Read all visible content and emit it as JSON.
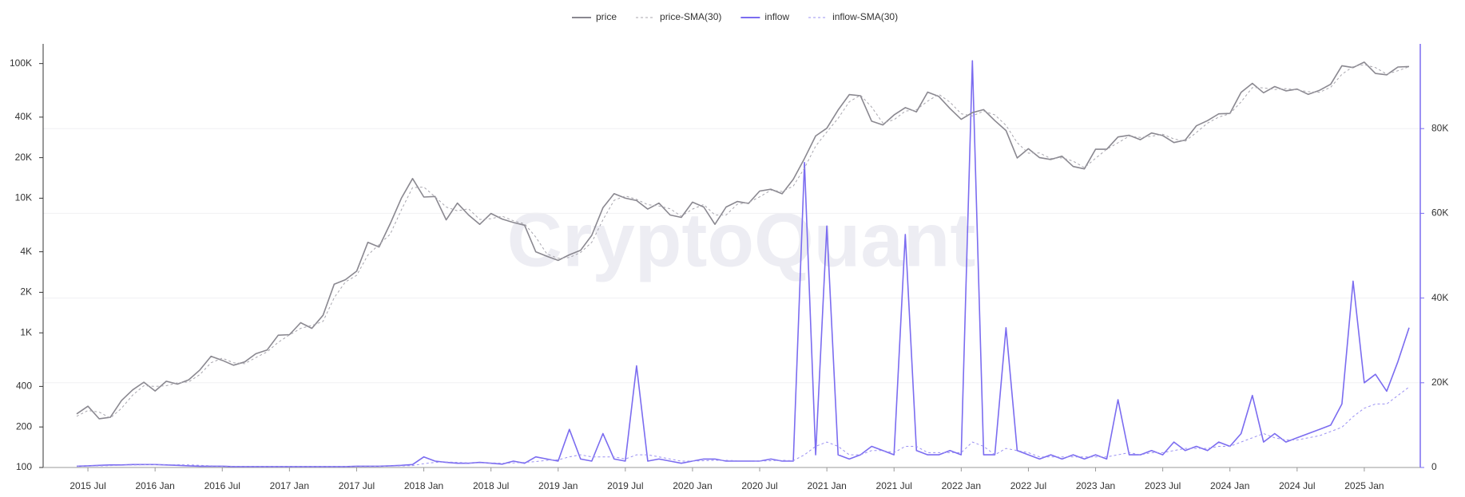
{
  "chart_data": {
    "type": "line",
    "watermark": "CryptoQuant",
    "ylog": true,
    "grid": true,
    "legend": "top",
    "x": [
      "2015-06",
      "2015-07",
      "2015-08",
      "2015-09",
      "2015-10",
      "2015-11",
      "2015-12",
      "2016-01",
      "2016-02",
      "2016-03",
      "2016-04",
      "2016-05",
      "2016-06",
      "2016-07",
      "2016-08",
      "2016-09",
      "2016-10",
      "2016-11",
      "2016-12",
      "2017-01",
      "2017-02",
      "2017-03",
      "2017-04",
      "2017-05",
      "2017-06",
      "2017-07",
      "2017-08",
      "2017-09",
      "2017-10",
      "2017-11",
      "2017-12",
      "2018-01",
      "2018-02",
      "2018-03",
      "2018-04",
      "2018-05",
      "2018-06",
      "2018-07",
      "2018-08",
      "2018-09",
      "2018-10",
      "2018-11",
      "2018-12",
      "2019-01",
      "2019-02",
      "2019-03",
      "2019-04",
      "2019-05",
      "2019-06",
      "2019-07",
      "2019-08",
      "2019-09",
      "2019-10",
      "2019-11",
      "2019-12",
      "2020-01",
      "2020-02",
      "2020-03",
      "2020-04",
      "2020-05",
      "2020-06",
      "2020-07",
      "2020-08",
      "2020-09",
      "2020-10",
      "2020-11",
      "2020-12",
      "2021-01",
      "2021-02",
      "2021-03",
      "2021-04",
      "2021-05",
      "2021-06",
      "2021-07",
      "2021-08",
      "2021-09",
      "2021-10",
      "2021-11",
      "2021-12",
      "2022-01",
      "2022-02",
      "2022-03",
      "2022-04",
      "2022-05",
      "2022-06",
      "2022-07",
      "2022-08",
      "2022-09",
      "2022-10",
      "2022-11",
      "2022-12",
      "2023-01",
      "2023-02",
      "2023-03",
      "2023-04",
      "2023-05",
      "2023-06",
      "2023-07",
      "2023-08",
      "2023-09",
      "2023-10",
      "2023-11",
      "2023-12",
      "2024-01",
      "2024-02",
      "2024-03",
      "2024-04",
      "2024-05",
      "2024-06",
      "2024-07",
      "2024-08",
      "2024-09",
      "2024-10",
      "2024-11",
      "2024-12",
      "2025-01",
      "2025-02",
      "2025-03",
      "2025-04",
      "2025-05"
    ],
    "xlim": [
      "2015-03",
      "2025-06"
    ],
    "xticks": [
      {
        "value": "2015-07",
        "label": "2015 Jul"
      },
      {
        "value": "2016-01",
        "label": "2016 Jan"
      },
      {
        "value": "2016-07",
        "label": "2016 Jul"
      },
      {
        "value": "2017-01",
        "label": "2017 Jan"
      },
      {
        "value": "2017-07",
        "label": "2017 Jul"
      },
      {
        "value": "2018-01",
        "label": "2018 Jan"
      },
      {
        "value": "2018-07",
        "label": "2018 Jul"
      },
      {
        "value": "2019-01",
        "label": "2019 Jan"
      },
      {
        "value": "2019-07",
        "label": "2019 Jul"
      },
      {
        "value": "2020-01",
        "label": "2020 Jan"
      },
      {
        "value": "2020-07",
        "label": "2020 Jul"
      },
      {
        "value": "2021-01",
        "label": "2021 Jan"
      },
      {
        "value": "2021-07",
        "label": "2021 Jul"
      },
      {
        "value": "2022-01",
        "label": "2022 Jan"
      },
      {
        "value": "2022-07",
        "label": "2022 Jul"
      },
      {
        "value": "2023-01",
        "label": "2023 Jan"
      },
      {
        "value": "2023-07",
        "label": "2023 Jul"
      },
      {
        "value": "2024-01",
        "label": "2024 Jan"
      },
      {
        "value": "2024-07",
        "label": "2024 Jul"
      },
      {
        "value": "2025-01",
        "label": "2025 Jan"
      }
    ],
    "ylim": [
      100,
      140000
    ],
    "yticks": [
      100,
      200,
      400,
      {
        "value": 1000,
        "label": "1K"
      },
      {
        "value": 2000,
        "label": "2K"
      },
      {
        "value": 4000,
        "label": "4K"
      },
      {
        "value": 10000,
        "label": "10K"
      },
      {
        "value": 20000,
        "label": "20K"
      },
      {
        "value": 40000,
        "label": "40K"
      },
      {
        "value": 100000,
        "label": "100K"
      }
    ],
    "y2lim": [
      0,
      100000
    ],
    "y2ticks": [
      0,
      {
        "value": 20000,
        "label": "20K"
      },
      {
        "value": 40000,
        "label": "40K"
      },
      {
        "value": 60000,
        "label": "60K"
      },
      {
        "value": 80000,
        "label": "80K"
      }
    ],
    "series": [
      {
        "name": "price",
        "color": "#8a8890",
        "style": "solid",
        "axis": "y",
        "values": [
          250,
          285,
          230,
          236,
          314,
          377,
          430,
          370,
          437,
          416,
          448,
          530,
          670,
          625,
          575,
          608,
          700,
          745,
          960,
          970,
          1190,
          1080,
          1350,
          2300,
          2480,
          2870,
          4700,
          4340,
          6470,
          10000,
          14000,
          10200,
          10300,
          6900,
          9200,
          7500,
          6400,
          7700,
          7000,
          6600,
          6300,
          4000,
          3700,
          3450,
          3800,
          4100,
          5300,
          8500,
          10800,
          10000,
          9600,
          8300,
          9200,
          7500,
          7200,
          9350,
          8600,
          6400,
          8600,
          9450,
          9140,
          11300,
          11650,
          10780,
          13800,
          19700,
          29000,
          33100,
          45200,
          58800,
          57700,
          37300,
          35000,
          41500,
          47100,
          43800,
          61300,
          57000,
          46300,
          38500,
          43200,
          45500,
          37700,
          31800,
          19900,
          23300,
          20000,
          19400,
          20500,
          17200,
          16500,
          23100,
          23100,
          28500,
          29300,
          27200,
          30500,
          29200,
          25900,
          27000,
          34500,
          37700,
          42300,
          42600,
          61200,
          71300,
          60700,
          67500,
          62700,
          64600,
          59000,
          63300,
          70200,
          96400,
          93400,
          102400,
          84400,
          82500,
          94200,
          95000
        ]
      },
      {
        "name": "price-SMA(30)",
        "color": "#a8a6ae",
        "style": "dashed",
        "axis": "y",
        "values": [
          240,
          265,
          258,
          233,
          275,
          345,
          405,
          400,
          405,
          425,
          432,
          490,
          600,
          648,
          600,
          590,
          655,
          722,
          850,
          965,
          1080,
          1135,
          1215,
          1825,
          2390,
          2675,
          3785,
          4520,
          5400,
          8200,
          12000,
          12100,
          10250,
          8600,
          8050,
          8350,
          6950,
          7050,
          7350,
          6800,
          6450,
          5150,
          3850,
          3575,
          3625,
          3950,
          4700,
          6900,
          9650,
          10400,
          9800,
          8950,
          8750,
          8350,
          7350,
          8300,
          8975,
          7500,
          7500,
          9025,
          9300,
          10220,
          11475,
          11215,
          12290,
          16750,
          24350,
          31050,
          39150,
          52000,
          58250,
          47500,
          36150,
          38250,
          44300,
          45450,
          52550,
          59150,
          51650,
          42400,
          40850,
          44350,
          41600,
          34750,
          25850,
          21600,
          21650,
          19700,
          19950,
          18850,
          16850,
          19800,
          23100,
          25800,
          28900,
          28250,
          28850,
          29850,
          27550,
          26450,
          30750,
          36100,
          40000,
          42450,
          51900,
          66250,
          66000,
          64100,
          65100,
          63650,
          61800,
          61150,
          66750,
          83300,
          94900,
          97900,
          93400,
          83450,
          88350,
          94600
        ]
      },
      {
        "name": "inflow",
        "color": "#7b6cf0",
        "style": "solid",
        "axis": "y2",
        "values": [
          300,
          400,
          500,
          600,
          600,
          700,
          700,
          700,
          600,
          500,
          400,
          300,
          300,
          300,
          200,
          200,
          200,
          200,
          200,
          200,
          200,
          200,
          200,
          200,
          200,
          300,
          300,
          300,
          400,
          500,
          700,
          2500,
          1500,
          1200,
          1000,
          1000,
          1200,
          1000,
          800,
          1500,
          1000,
          2500,
          2000,
          1500,
          9000,
          2000,
          1500,
          8000,
          2000,
          1500,
          24000,
          1500,
          2000,
          1500,
          1000,
          1500,
          2000,
          2000,
          1500,
          1500,
          1500,
          1500,
          2000,
          1500,
          1500,
          72000,
          3000,
          57000,
          3000,
          2000,
          3000,
          5000,
          4000,
          3000,
          55000,
          4000,
          3000,
          3000,
          4000,
          3000,
          96000,
          3000,
          3000,
          33000,
          4000,
          3000,
          2000,
          3000,
          2000,
          3000,
          2000,
          3000,
          2000,
          16000,
          3000,
          3000,
          4000,
          3000,
          6000,
          4000,
          5000,
          4000,
          6000,
          5000,
          8000,
          17000,
          6000,
          8000,
          6000,
          7000,
          8000,
          9000,
          10000,
          15000,
          44000,
          20000,
          22000,
          18000,
          25000,
          33000
        ]
      },
      {
        "name": "inflow-SMA(30)",
        "color": "#9a90f2",
        "style": "dashed",
        "axis": "y2",
        "values": [
          300,
          330,
          380,
          450,
          520,
          580,
          640,
          680,
          680,
          650,
          600,
          500,
          400,
          330,
          280,
          250,
          220,
          200,
          200,
          200,
          200,
          200,
          200,
          200,
          200,
          220,
          250,
          280,
          320,
          380,
          450,
          900,
          1200,
          1300,
          1200,
          1100,
          1100,
          1100,
          1000,
          1100,
          1200,
          1400,
          1700,
          1800,
          2500,
          3000,
          2500,
          2500,
          2500,
          2000,
          3000,
          3000,
          2500,
          2000,
          1500,
          1500,
          1600,
          1700,
          1700,
          1600,
          1600,
          1500,
          1600,
          1700,
          1600,
          3000,
          5000,
          6000,
          5000,
          3000,
          3000,
          4000,
          4000,
          3500,
          5000,
          5000,
          3500,
          3500,
          3500,
          3500,
          6000,
          5000,
          3000,
          4500,
          4000,
          3500,
          2500,
          2500,
          2500,
          2500,
          2500,
          2500,
          2500,
          3000,
          3500,
          3000,
          3500,
          3500,
          4000,
          4500,
          4500,
          4500,
          5000,
          5000,
          6000,
          7000,
          8000,
          7000,
          6500,
          6500,
          7000,
          7500,
          8500,
          9500,
          12000,
          14000,
          15000,
          15000,
          17000,
          19000
        ]
      }
    ]
  }
}
